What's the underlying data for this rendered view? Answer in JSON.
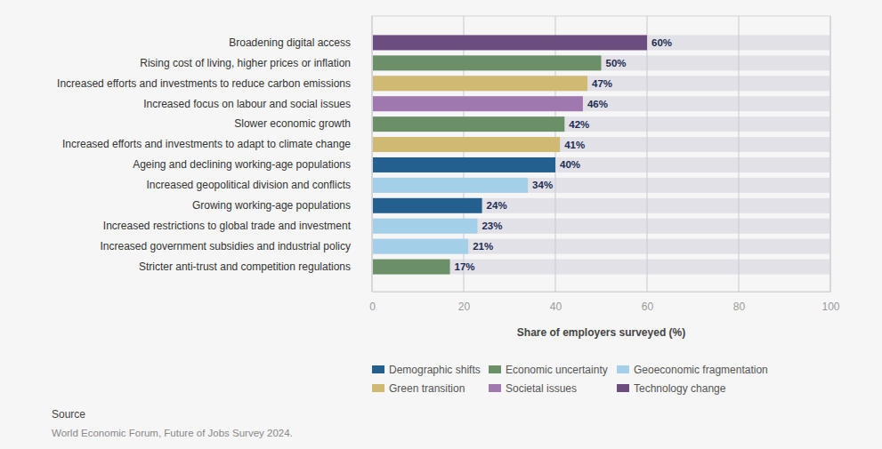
{
  "chart_data": {
    "type": "bar",
    "orientation": "horizontal",
    "categories": [
      "Broadening digital access",
      "Rising cost of living, higher prices or inflation",
      "Increased efforts and investments to reduce carbon emissions",
      "Increased focus on labour and social issues",
      "Slower economic growth",
      "Increased efforts and investments to adapt to climate change",
      "Ageing and declining working-age populations",
      "Increased geopolitical division and conflicts",
      "Growing working-age populations",
      "Increased restrictions to global trade and investment",
      "Increased government subsidies and industrial policy",
      "Stricter anti-trust and competition regulations"
    ],
    "series": [
      {
        "name": "Demographic shifts",
        "color": "#235f8f",
        "values": [
          null,
          null,
          null,
          null,
          null,
          null,
          40,
          null,
          24,
          null,
          null,
          null
        ],
        "value_labels": [
          null,
          null,
          null,
          null,
          null,
          null,
          "40%",
          null,
          "24%",
          null,
          null,
          null
        ]
      },
      {
        "name": "Economic uncertainty",
        "color": "#6b9068",
        "values": [
          null,
          50,
          null,
          null,
          42,
          null,
          null,
          null,
          null,
          null,
          null,
          17
        ],
        "value_labels": [
          null,
          "50%",
          null,
          null,
          "42%",
          null,
          null,
          null,
          null,
          null,
          null,
          "17%"
        ]
      },
      {
        "name": "Geoeconomic fragmentation",
        "color": "#a4cfe8",
        "values": [
          null,
          null,
          null,
          null,
          null,
          null,
          null,
          34,
          null,
          23,
          21,
          null
        ],
        "value_labels": [
          null,
          null,
          null,
          null,
          null,
          null,
          null,
          "34%",
          null,
          "23%",
          "21%",
          null
        ]
      },
      {
        "name": "Green transition",
        "color": "#cfb973",
        "values": [
          null,
          null,
          47,
          null,
          null,
          41,
          null,
          null,
          null,
          null,
          null,
          null
        ],
        "value_labels": [
          null,
          null,
          "47%",
          null,
          null,
          "41%",
          null,
          null,
          null,
          null,
          null,
          null
        ]
      },
      {
        "name": "Societal issues",
        "color": "#a078b0",
        "values": [
          null,
          null,
          null,
          46,
          null,
          null,
          null,
          null,
          null,
          null,
          null,
          null
        ],
        "value_labels": [
          null,
          null,
          null,
          "46%",
          null,
          null,
          null,
          null,
          null,
          null,
          null,
          null
        ]
      },
      {
        "name": "Technology change",
        "color": "#6c4d80",
        "values": [
          60,
          null,
          null,
          null,
          null,
          null,
          null,
          null,
          null,
          null,
          null,
          null
        ],
        "value_labels": [
          "60%",
          null,
          null,
          null,
          null,
          null,
          null,
          null,
          null,
          null,
          null,
          null
        ]
      }
    ],
    "x_label": "Share of employers surveyed (%)",
    "xlim": [
      0,
      100
    ],
    "xticks": [
      0,
      20,
      40,
      60,
      80,
      100
    ],
    "grid": true,
    "data_labels": true,
    "annotations": [
      "Source",
      "World Economic Forum, Future of Jobs Survey 2024."
    ]
  }
}
